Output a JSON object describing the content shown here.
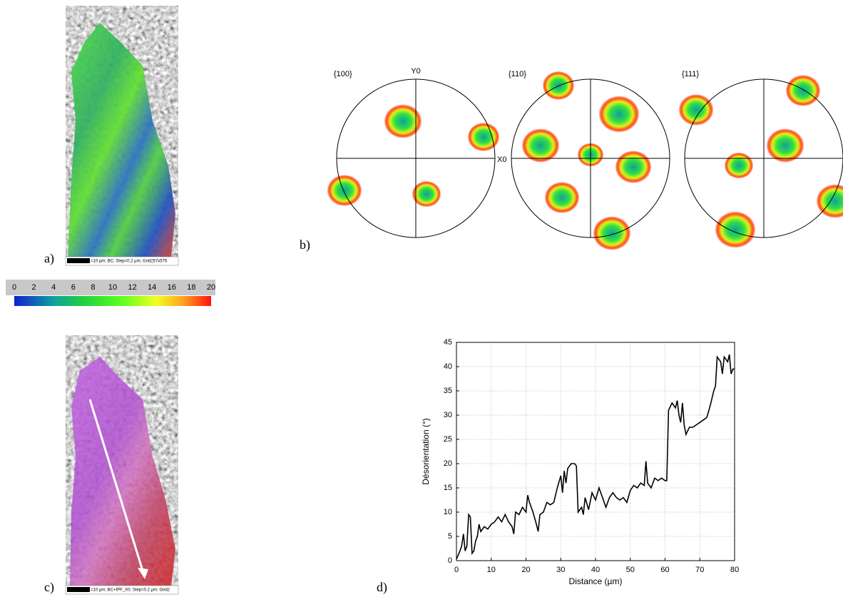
{
  "panels": {
    "a": {
      "label": "a)",
      "scale_text": "=10 µm; BC; Step=0.2 µm; Grid257x575"
    },
    "b": {
      "label": "b)"
    },
    "c": {
      "label": "c)",
      "scale_text": "=10 µm; BC+IPF_X0; Step=0.2 µm; Grid2"
    },
    "d": {
      "label": "d)"
    }
  },
  "colorbar": {
    "lim": [
      0,
      20
    ],
    "ticks": [
      0,
      2,
      4,
      6,
      8,
      10,
      12,
      14,
      16,
      18,
      20
    ]
  },
  "pole_figures": {
    "items": [
      {
        "label": "{100}"
      },
      {
        "label": "{110}"
      },
      {
        "label": "{111}"
      }
    ],
    "y_axis": "Y0",
    "x_axis": "X0"
  },
  "chart_data": {
    "type": "line",
    "xlabel": "Distance (µm)",
    "ylabel": "Désorientation (°)",
    "x": [
      0,
      1,
      1.5,
      2,
      2.5,
      3,
      3.5,
      4,
      4.5,
      5,
      5.5,
      6,
      6.5,
      7,
      8,
      9,
      10,
      11,
      12,
      13,
      14,
      15,
      16,
      16.5,
      17,
      18,
      19,
      20,
      20.5,
      21,
      22,
      23,
      23.5,
      24,
      25,
      26,
      27,
      28,
      29,
      30,
      30.5,
      31,
      31.5,
      32,
      33,
      34,
      34.5,
      35,
      36,
      36.5,
      37,
      38,
      39,
      40,
      41,
      42,
      43,
      44,
      45,
      46,
      47,
      48,
      49,
      50,
      51,
      52,
      53,
      54,
      54.5,
      55,
      56,
      57,
      58,
      59,
      60,
      60.5,
      61,
      62,
      63,
      63.5,
      64,
      64.5,
      65,
      65.5,
      66,
      67,
      68,
      69,
      70,
      71,
      72,
      73,
      74,
      74.5,
      75,
      76,
      76.5,
      77,
      78,
      78.5,
      79,
      79.5,
      80
    ],
    "values": [
      0.3,
      2,
      3,
      5.5,
      2,
      3,
      9.5,
      9,
      1.5,
      2,
      4,
      5,
      7.5,
      6,
      7,
      6.5,
      7.5,
      8,
      9,
      8,
      9.5,
      8,
      7,
      5.5,
      10,
      9.5,
      11,
      10,
      13.5,
      12,
      10,
      7.5,
      6,
      9.5,
      10,
      12,
      11.5,
      12,
      15,
      17.5,
      14,
      18.5,
      16,
      19,
      20,
      20,
      19.5,
      10,
      11,
      9.5,
      13,
      10.5,
      14,
      12.5,
      15,
      13,
      11,
      13,
      14,
      13,
      12.5,
      13,
      12,
      14.5,
      15.5,
      15,
      16,
      15.5,
      20.5,
      16,
      15,
      17,
      16.5,
      17,
      16.5,
      16.5,
      31,
      32.5,
      31.5,
      33,
      30,
      28.5,
      32.5,
      28,
      26,
      27.5,
      27.5,
      28,
      28.5,
      29,
      29.5,
      32,
      35,
      36,
      42,
      41,
      38.5,
      42,
      41,
      42.5,
      38.5,
      39.5,
      39.5
    ],
    "color": "#000000",
    "xlim": [
      0,
      80
    ],
    "ylim": [
      0,
      45
    ],
    "xticks": [
      0,
      10,
      20,
      30,
      40,
      50,
      60,
      70,
      80
    ],
    "yticks": [
      0,
      5,
      10,
      15,
      20,
      25,
      30,
      35,
      40,
      45
    ],
    "grid": true
  }
}
